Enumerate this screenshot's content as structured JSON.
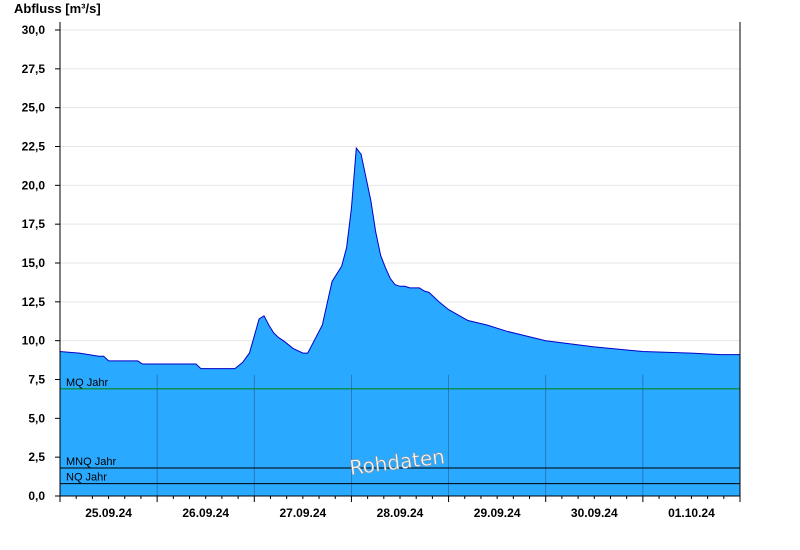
{
  "chart_data": {
    "type": "area",
    "title": "",
    "ylabel": "Abfluss [m³/s]",
    "xlabel": "",
    "ylim": [
      0,
      30
    ],
    "yticks": [
      "0,0",
      "2,5",
      "5,0",
      "7,5",
      "10,0",
      "12,5",
      "15,0",
      "17,5",
      "20,0",
      "22,5",
      "25,0",
      "27,5",
      "30,0"
    ],
    "xlim_days": [
      0,
      7
    ],
    "x_tick_labels": [
      "25.09.24",
      "26.09.24",
      "27.09.24",
      "28.09.24",
      "29.09.24",
      "30.09.24",
      "01.10.24"
    ],
    "grid": true,
    "fill_color": "#29a9ff",
    "line_color": "#0000c8",
    "series": [
      {
        "x": [
          0,
          0.2,
          0.4,
          0.45,
          0.5,
          0.8,
          0.85,
          1.0,
          1.4,
          1.45,
          1.5,
          1.7,
          1.8,
          1.88,
          1.95,
          2.0,
          2.05,
          2.1,
          2.15,
          2.2,
          2.25,
          2.3,
          2.4,
          2.5,
          2.55,
          2.7,
          2.8,
          2.9,
          2.95,
          3.0,
          3.05,
          3.1,
          3.15,
          3.2,
          3.25,
          3.3,
          3.35,
          3.4,
          3.45,
          3.5,
          3.55,
          3.6,
          3.65,
          3.7,
          3.75,
          3.8,
          3.9,
          4.0,
          4.2,
          4.4,
          4.6,
          4.8,
          5.0,
          5.5,
          6.0,
          6.5,
          6.8,
          7.0
        ],
        "y": [
          9.3,
          9.2,
          9.0,
          9.0,
          8.7,
          8.7,
          8.5,
          8.5,
          8.5,
          8.2,
          8.2,
          8.2,
          8.2,
          8.6,
          9.2,
          10.3,
          11.4,
          11.6,
          11.0,
          10.5,
          10.2,
          10.0,
          9.5,
          9.2,
          9.2,
          11.0,
          13.8,
          14.8,
          16.0,
          18.5,
          22.4,
          22.0,
          20.5,
          19.0,
          17.0,
          15.5,
          14.7,
          14.0,
          13.6,
          13.5,
          13.5,
          13.4,
          13.4,
          13.4,
          13.2,
          13.1,
          12.5,
          12.0,
          11.3,
          11.0,
          10.6,
          10.3,
          10.0,
          9.6,
          9.3,
          9.2,
          9.1,
          9.1
        ]
      }
    ],
    "reference_lines": [
      {
        "name": "MQ Jahr",
        "value": 6.9,
        "color": "#008000"
      },
      {
        "name": "MNQ Jahr",
        "value": 1.8,
        "color": "#000000"
      },
      {
        "name": "NQ Jahr",
        "value": 0.8,
        "color": "#000000"
      }
    ],
    "watermark": "Rohdaten"
  }
}
